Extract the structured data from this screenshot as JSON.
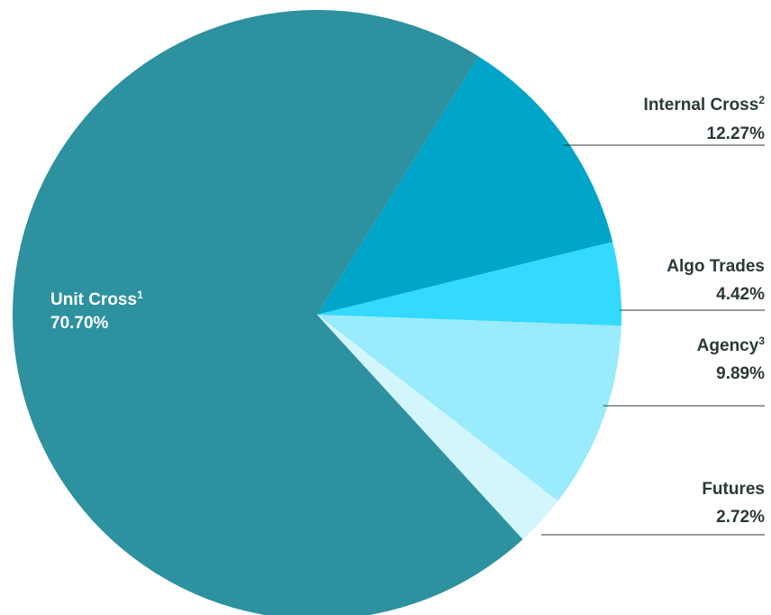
{
  "chart_data": {
    "type": "pie",
    "start_angle_deg": 58,
    "direction": "clockwise",
    "slices": [
      {
        "name": "Internal Cross",
        "sup": "2",
        "value": 12.27,
        "value_label": "12.27%",
        "color": "#00a5c9"
      },
      {
        "name": "Algo Trades",
        "sup": "",
        "value": 4.42,
        "value_label": "4.42%",
        "color": "#33d9ff"
      },
      {
        "name": "Agency",
        "sup": "3",
        "value": 9.89,
        "value_label": "9.89%",
        "color": "#9aebfb"
      },
      {
        "name": "Futures",
        "sup": "",
        "value": 2.72,
        "value_label": "2.72%",
        "color": "#d3f6fd"
      },
      {
        "name": "Unit Cross",
        "sup": "1",
        "value": 70.7,
        "value_label": "70.70%",
        "color": "#2d919f"
      }
    ],
    "label_placement": "right-side with leader lines; largest slice labeled inside"
  }
}
